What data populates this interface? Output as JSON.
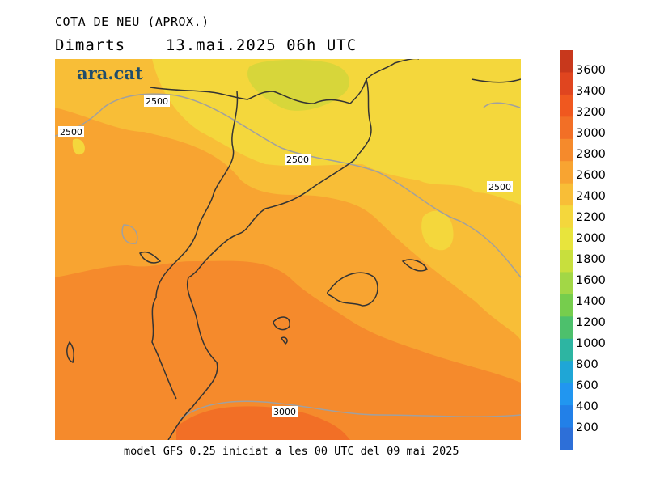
{
  "header": {
    "title": "COTA DE NEU (APROX.)",
    "day": "Dimarts",
    "datetime": "13.mai.2025 06h UTC"
  },
  "footer": {
    "text": "model GFS 0.25 iniciat a les 00 UTC del 09 mai 2025"
  },
  "logo": {
    "text": "ara.cat",
    "color": "#1f4d6b"
  },
  "map": {
    "contour_labels": [
      "2500",
      "2500",
      "2500",
      "2500",
      "3000"
    ],
    "colors": {
      "2200": "#f4d73c",
      "2400": "#f8be37",
      "2600": "#f8a431",
      "2800": "#f58a2c",
      "3000": "#f26f26",
      "1800": "#d7d63a"
    }
  },
  "colorbar": {
    "levels": [
      "3600",
      "3400",
      "3200",
      "3000",
      "2800",
      "2600",
      "2400",
      "2200",
      "2000",
      "1800",
      "1600",
      "1400",
      "1200",
      "1000",
      "800",
      "600",
      "400",
      "200"
    ],
    "colors": [
      "#c8381c",
      "#e0451f",
      "#f0581f",
      "#f26f26",
      "#f58a2c",
      "#f8a431",
      "#f8be37",
      "#f4d73c",
      "#e8e43c",
      "#c8df3d",
      "#a2d746",
      "#76cd4d",
      "#4dc06c",
      "#2db5a2",
      "#1fa6d6",
      "#2196f0",
      "#2280e8",
      "#2d6fd8"
    ]
  }
}
